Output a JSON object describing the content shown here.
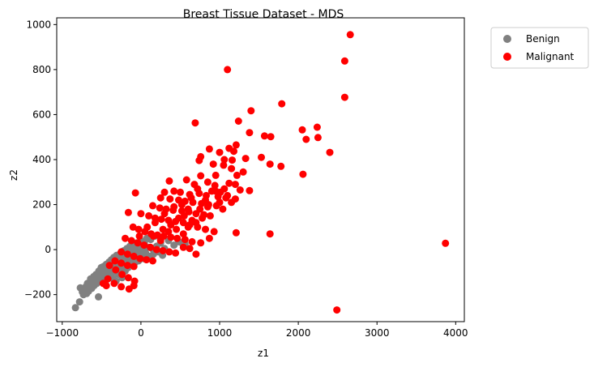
{
  "chart_data": {
    "type": "scatter",
    "title": "Breast Tissue Dataset - MDS",
    "xlabel": "z1",
    "ylabel": "z2",
    "xlim": [
      -1070,
      4110
    ],
    "ylim": [
      -320,
      1030
    ],
    "xticks": [
      -1000,
      0,
      1000,
      2000,
      3000,
      4000
    ],
    "yticks": [
      -200,
      0,
      200,
      400,
      600,
      800,
      1000
    ],
    "grid": false,
    "legend_position": "outside-top-right",
    "series": [
      {
        "name": "Benign",
        "color": "#808080",
        "points": [
          [
            -832,
            -258
          ],
          [
            -780,
            -232
          ],
          [
            -770,
            -170
          ],
          [
            -745,
            -188
          ],
          [
            -730,
            -200
          ],
          [
            -715,
            -178
          ],
          [
            -700,
            -165
          ],
          [
            -690,
            -195
          ],
          [
            -680,
            -150
          ],
          [
            -665,
            -185
          ],
          [
            -650,
            -160
          ],
          [
            -640,
            -130
          ],
          [
            -625,
            -172
          ],
          [
            -615,
            -145
          ],
          [
            -600,
            -120
          ],
          [
            -595,
            -160
          ],
          [
            -585,
            -135
          ],
          [
            -570,
            -110
          ],
          [
            -560,
            -150
          ],
          [
            -550,
            -125
          ],
          [
            -540,
            -210
          ],
          [
            -535,
            -95
          ],
          [
            -525,
            -140
          ],
          [
            -515,
            -115
          ],
          [
            -505,
            -80
          ],
          [
            -495,
            -130
          ],
          [
            -485,
            -100
          ],
          [
            -475,
            -75
          ],
          [
            -470,
            -120
          ],
          [
            -460,
            -90
          ],
          [
            -450,
            -140
          ],
          [
            -440,
            -65
          ],
          [
            -432,
            -105
          ],
          [
            -425,
            -85
          ],
          [
            -415,
            -120
          ],
          [
            -405,
            -55
          ],
          [
            -400,
            -95
          ],
          [
            -390,
            -70
          ],
          [
            -382,
            -110
          ],
          [
            -375,
            -45
          ],
          [
            -368,
            -85
          ],
          [
            -360,
            -60
          ],
          [
            -352,
            -130
          ],
          [
            -345,
            -35
          ],
          [
            -338,
            -75
          ],
          [
            -330,
            -100
          ],
          [
            -322,
            -50
          ],
          [
            -315,
            -140
          ],
          [
            -308,
            -25
          ],
          [
            -300,
            -80
          ],
          [
            -292,
            -55
          ],
          [
            -285,
            -110
          ],
          [
            -278,
            -30
          ],
          [
            -270,
            -70
          ],
          [
            -262,
            -90
          ],
          [
            -255,
            -15
          ],
          [
            -248,
            -50
          ],
          [
            -240,
            -125
          ],
          [
            -232,
            -35
          ],
          [
            -225,
            -75
          ],
          [
            -218,
            -5
          ],
          [
            -210,
            -55
          ],
          [
            -200,
            -95
          ],
          [
            -192,
            -20
          ],
          [
            -185,
            -65
          ],
          [
            -178,
            5
          ],
          [
            -170,
            -40
          ],
          [
            -162,
            -80
          ],
          [
            -155,
            -10
          ],
          [
            -148,
            -50
          ],
          [
            -140,
            15
          ],
          [
            -130,
            -30
          ],
          [
            -122,
            -70
          ],
          [
            -115,
            0
          ],
          [
            -105,
            -45
          ],
          [
            -95,
            20
          ],
          [
            -88,
            -20
          ],
          [
            -80,
            -60
          ],
          [
            -70,
            10
          ],
          [
            -60,
            -35
          ],
          [
            -50,
            30
          ],
          [
            -40,
            -10
          ],
          [
            -30,
            -50
          ],
          [
            -20,
            25
          ],
          [
            -10,
            -25
          ],
          [
            0,
            40
          ],
          [
            15,
            0
          ],
          [
            30,
            -40
          ],
          [
            45,
            35
          ],
          [
            60,
            -15
          ],
          [
            75,
            50
          ],
          [
            90,
            10
          ],
          [
            110,
            -30
          ],
          [
            125,
            45
          ],
          [
            140,
            5
          ],
          [
            160,
            -20
          ],
          [
            180,
            60
          ],
          [
            200,
            15
          ],
          [
            225,
            -10
          ],
          [
            250,
            30
          ],
          [
            275,
            -25
          ],
          [
            300,
            5
          ],
          [
            350,
            40
          ],
          [
            420,
            20
          ],
          [
            480,
            35
          ],
          [
            520,
            30
          ],
          [
            560,
            25
          ]
        ]
      },
      {
        "name": "Malignant",
        "color": "#ff0000",
        "points": [
          [
            2660,
            955
          ],
          [
            2590,
            838
          ],
          [
            1100,
            800
          ],
          [
            2590,
            677
          ],
          [
            1790,
            648
          ],
          [
            1400,
            617
          ],
          [
            690,
            563
          ],
          [
            1240,
            571
          ],
          [
            2240,
            544
          ],
          [
            2050,
            532
          ],
          [
            1380,
            520
          ],
          [
            1570,
            505
          ],
          [
            1650,
            502
          ],
          [
            2250,
            498
          ],
          [
            2100,
            490
          ],
          [
            1210,
            465
          ],
          [
            1120,
            450
          ],
          [
            870,
            447
          ],
          [
            1000,
            432
          ],
          [
            1180,
            437
          ],
          [
            2400,
            432
          ],
          [
            760,
            413
          ],
          [
            1330,
            405
          ],
          [
            1530,
            410
          ],
          [
            740,
            396
          ],
          [
            1060,
            400
          ],
          [
            1160,
            398
          ],
          [
            920,
            380
          ],
          [
            1050,
            375
          ],
          [
            1640,
            380
          ],
          [
            1780,
            370
          ],
          [
            1150,
            360
          ],
          [
            1300,
            345
          ],
          [
            1220,
            330
          ],
          [
            2060,
            335
          ],
          [
            760,
            328
          ],
          [
            950,
            330
          ],
          [
            850,
            300
          ],
          [
            1120,
            295
          ],
          [
            1200,
            290
          ],
          [
            360,
            305
          ],
          [
            580,
            310
          ],
          [
            680,
            290
          ],
          [
            940,
            285
          ],
          [
            1060,
            270
          ],
          [
            1380,
            262
          ],
          [
            300,
            255
          ],
          [
            -70,
            252
          ],
          [
            420,
            260
          ],
          [
            500,
            255
          ],
          [
            620,
            245
          ],
          [
            740,
            250
          ],
          [
            830,
            240
          ],
          [
            980,
            235
          ],
          [
            1100,
            240
          ],
          [
            1200,
            225
          ],
          [
            250,
            230
          ],
          [
            370,
            225
          ],
          [
            480,
            220
          ],
          [
            560,
            215
          ],
          [
            660,
            210
          ],
          [
            770,
            205
          ],
          [
            860,
            200
          ],
          [
            960,
            195
          ],
          [
            1040,
            180
          ],
          [
            150,
            195
          ],
          [
            240,
            185
          ],
          [
            320,
            180
          ],
          [
            410,
            175
          ],
          [
            520,
            172
          ],
          [
            610,
            168
          ],
          [
            700,
            160
          ],
          [
            800,
            155
          ],
          [
            880,
            150
          ],
          [
            -160,
            165
          ],
          [
            0,
            160
          ],
          [
            100,
            150
          ],
          [
            180,
            140
          ],
          [
            260,
            135
          ],
          [
            350,
            130
          ],
          [
            440,
            125
          ],
          [
            540,
            120
          ],
          [
            620,
            110
          ],
          [
            720,
            100
          ],
          [
            820,
            90
          ],
          [
            930,
            80
          ],
          [
            1210,
            75
          ],
          [
            1640,
            70
          ],
          [
            -100,
            100
          ],
          [
            -30,
            90
          ],
          [
            50,
            80
          ],
          [
            130,
            70
          ],
          [
            210,
            65
          ],
          [
            290,
            60
          ],
          [
            380,
            55
          ],
          [
            460,
            50
          ],
          [
            560,
            45
          ],
          [
            650,
            35
          ],
          [
            760,
            30
          ],
          [
            870,
            50
          ],
          [
            -200,
            50
          ],
          [
            -120,
            40
          ],
          [
            -40,
            30
          ],
          [
            40,
            20
          ],
          [
            120,
            10
          ],
          [
            200,
            0
          ],
          [
            280,
            -5
          ],
          [
            360,
            -10
          ],
          [
            440,
            -15
          ],
          [
            540,
            10
          ],
          [
            620,
            5
          ],
          [
            700,
            -20
          ],
          [
            -250,
            -10
          ],
          [
            -170,
            -20
          ],
          [
            -90,
            -30
          ],
          [
            -10,
            -40
          ],
          [
            70,
            -45
          ],
          [
            150,
            -50
          ],
          [
            -330,
            -50
          ],
          [
            -250,
            -60
          ],
          [
            -170,
            -70
          ],
          [
            -90,
            -75
          ],
          [
            -400,
            -70
          ],
          [
            -320,
            -90
          ],
          [
            -240,
            -110
          ],
          [
            -160,
            -125
          ],
          [
            -80,
            -140
          ],
          [
            -420,
            -130
          ],
          [
            -340,
            -150
          ],
          [
            -250,
            -165
          ],
          [
            -150,
            -175
          ],
          [
            -90,
            -160
          ],
          [
            -440,
            -160
          ],
          [
            -480,
            -150
          ],
          [
            3870,
            28
          ],
          [
            2490,
            -268
          ],
          [
            180,
            120
          ],
          [
            300,
            160
          ],
          [
            420,
            190
          ],
          [
            520,
            200
          ],
          [
            640,
            230
          ],
          [
            720,
            270
          ],
          [
            820,
            220
          ],
          [
            900,
            260
          ],
          [
            1000,
            210
          ],
          [
            600,
            180
          ],
          [
            480,
            140
          ],
          [
            380,
            110
          ],
          [
            280,
            90
          ],
          [
            160,
            60
          ],
          [
            80,
            100
          ],
          [
            -20,
            60
          ],
          [
            250,
            40
          ],
          [
            350,
            80
          ],
          [
            450,
            90
          ],
          [
            550,
            150
          ],
          [
            650,
            130
          ],
          [
            750,
            180
          ],
          [
            850,
            190
          ],
          [
            950,
            260
          ],
          [
            1010,
            255
          ],
          [
            1080,
            230
          ],
          [
            1150,
            210
          ],
          [
            1260,
            265
          ],
          [
            540,
            70
          ],
          [
            600,
            100
          ],
          [
            700,
            120
          ],
          [
            780,
            140
          ]
        ]
      }
    ]
  }
}
